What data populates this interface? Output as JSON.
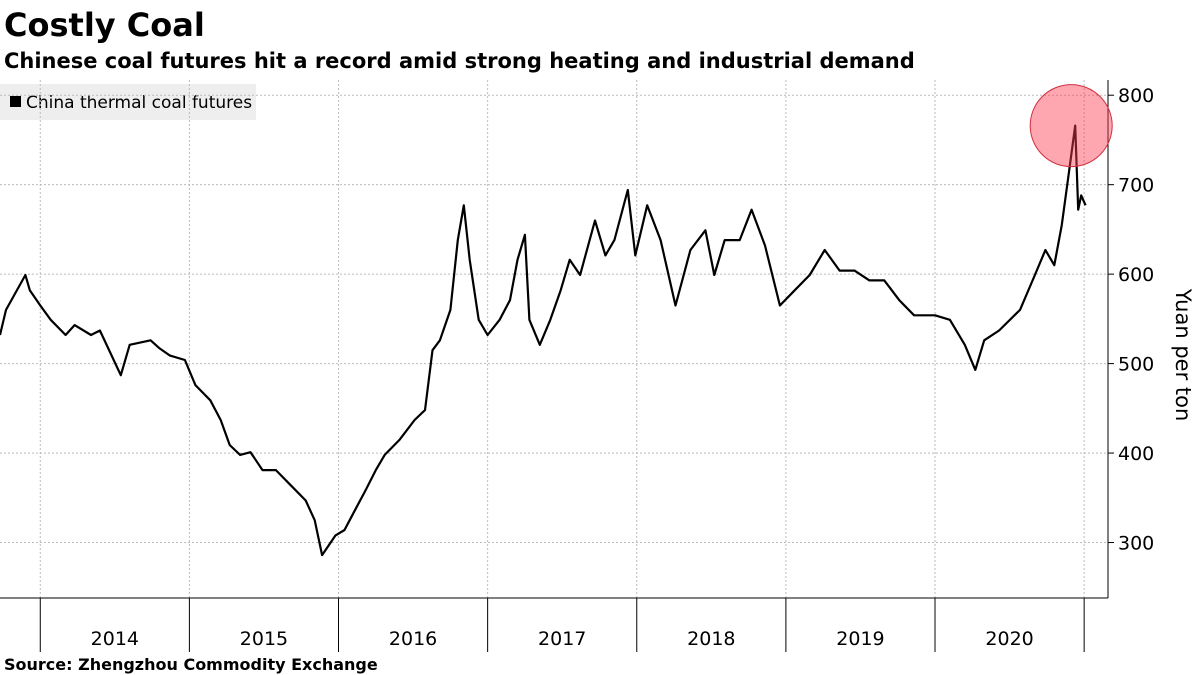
{
  "chart_data": {
    "type": "line",
    "title": "Costly Coal",
    "subtitle": "Chinese coal futures hit a record amid strong heating and industrial demand",
    "source": "Source: Zhengzhou Commodity Exchange",
    "y_axis_label": "Yuan per ton",
    "ylim": [
      238,
      817
    ],
    "yticks": [
      300,
      400,
      500,
      600,
      700,
      800
    ],
    "xlim": [
      2013.73,
      2021.16
    ],
    "xticks": [
      2014,
      2015,
      2016,
      2017,
      2018,
      2019,
      2020,
      2021
    ],
    "year_labels": [
      2014,
      2015,
      2016,
      2017,
      2018,
      2019,
      2020
    ],
    "grid": true,
    "legend": "top-left",
    "x": [
      2013.73,
      2013.77,
      2013.9,
      2013.93,
      2014.0,
      2014.07,
      2014.17,
      2014.23,
      2014.34,
      2014.4,
      2014.54,
      2014.6,
      2014.74,
      2014.8,
      2014.87,
      2014.97,
      2015.04,
      2015.14,
      2015.21,
      2015.27,
      2015.34,
      2015.41,
      2015.49,
      2015.58,
      2015.68,
      2015.78,
      2015.84,
      2015.89,
      2015.98,
      2016.04,
      2016.11,
      2016.18,
      2016.25,
      2016.31,
      2016.41,
      2016.51,
      2016.58,
      2016.63,
      2016.68,
      2016.75,
      2016.8,
      2016.84,
      2016.88,
      2016.94,
      2017.0,
      2017.08,
      2017.15,
      2017.2,
      2017.25,
      2017.28,
      2017.35,
      2017.42,
      2017.49,
      2017.55,
      2017.62,
      2017.72,
      2017.79,
      2017.85,
      2017.94,
      2017.99,
      2018.07,
      2018.16,
      2018.26,
      2018.36,
      2018.46,
      2018.52,
      2018.59,
      2018.69,
      2018.77,
      2018.86,
      2018.96,
      2019.06,
      2019.16,
      2019.26,
      2019.36,
      2019.46,
      2019.56,
      2019.66,
      2019.76,
      2019.86,
      2020.0,
      2020.1,
      2020.2,
      2020.27,
      2020.33,
      2020.43,
      2020.57,
      2020.67,
      2020.74,
      2020.8,
      2020.85,
      2020.9,
      2020.94,
      2020.96,
      2020.98,
      2021.01
    ],
    "series": [
      {
        "name": "China thermal coal futures",
        "color": "#000000",
        "values": [
          532,
          560,
          599,
          582,
          565,
          549,
          532,
          543,
          532,
          537,
          487,
          521,
          526,
          517,
          509,
          504,
          476,
          459,
          437,
          409,
          398,
          401,
          381,
          381,
          364,
          347,
          325,
          286,
          308,
          314,
          336,
          358,
          381,
          398,
          415,
          437,
          448,
          515,
          526,
          560,
          638,
          677,
          616,
          549,
          532,
          549,
          571,
          616,
          644,
          549,
          521,
          549,
          582,
          616,
          599,
          660,
          621,
          638,
          694,
          621,
          677,
          638,
          565,
          627,
          649,
          599,
          638,
          638,
          672,
          632,
          565,
          582,
          599,
          627,
          604,
          604,
          593,
          593,
          571,
          554,
          554,
          549,
          521,
          493,
          526,
          537,
          560,
          599,
          627,
          610,
          655,
          716,
          766,
          672,
          688,
          677
        ]
      }
    ]
  }
}
